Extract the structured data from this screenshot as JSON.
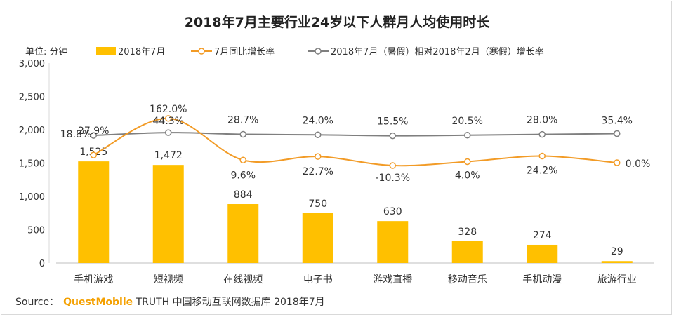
{
  "chart_data": {
    "type": "bar",
    "title": "2018年7月主要行业24岁以下人群月人均使用时长",
    "ylabel": "单位: 分钟",
    "ylim": [
      0,
      3000
    ],
    "yticks": [
      "0",
      "500",
      "1,000",
      "1,500",
      "2,000",
      "2,500",
      "3,000"
    ],
    "categories": [
      "手机游戏",
      "短视频",
      "在线视频",
      "电子书",
      "游戏直播",
      "移动音乐",
      "手机动漫",
      "旅游行业"
    ],
    "series": [
      {
        "name": "2018年7月",
        "kind": "bar",
        "color": "#ffc000",
        "values": [
          1525,
          1472,
          884,
          750,
          630,
          328,
          274,
          29
        ],
        "labels": [
          "1,525",
          "1,472",
          "884",
          "750",
          "630",
          "328",
          "274",
          "29"
        ]
      },
      {
        "name": "7月同比增长率",
        "kind": "line",
        "color": "#f29b26",
        "values": [
          27.9,
          162.0,
          9.6,
          22.7,
          -10.3,
          4.0,
          24.2,
          0.0
        ],
        "labels": [
          "27.9%",
          "162.0%",
          "9.6%",
          "22.7%",
          "-10.3%",
          "4.0%",
          "24.2%",
          "0.0%"
        ]
      },
      {
        "name": "2018年7月（暑假）相对2018年2月（寒假）增长率",
        "kind": "line",
        "color": "#7f7f7f",
        "values": [
          18.8,
          44.3,
          28.7,
          24.0,
          15.5,
          20.5,
          28.0,
          35.4
        ],
        "labels": [
          "18.8%",
          "44.3%",
          "28.7%",
          "24.0%",
          "15.5%",
          "20.5%",
          "28.0%",
          "35.4%"
        ]
      }
    ],
    "legend_position": "top"
  },
  "source": {
    "prefix": "Source：",
    "brand": "QuestMobile",
    "suffix": " TRUTH 中国移动互联网数据库 2018年7月"
  }
}
